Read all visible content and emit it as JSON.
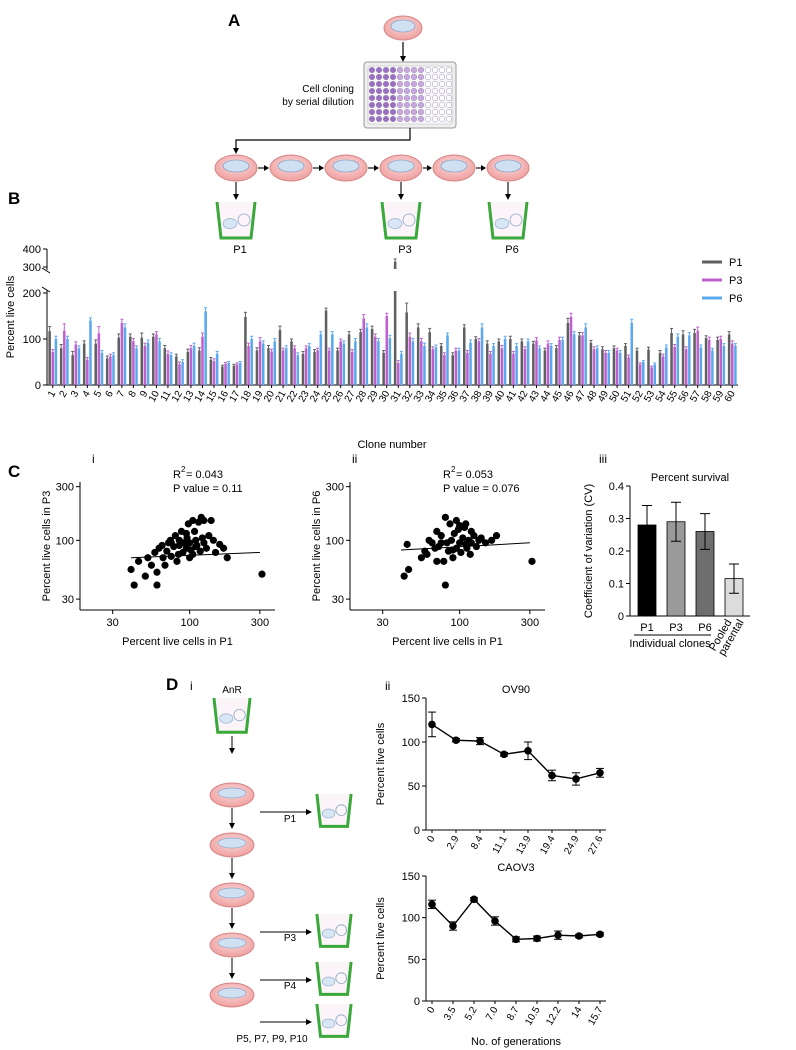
{
  "panel_labels": {
    "A": "A",
    "B": "B",
    "C": "C",
    "D": "D"
  },
  "panel_a": {
    "cloning_line1": "Cell cloning",
    "cloning_line2": "by serial dilution",
    "well_labels": [
      "P1",
      "P3",
      "P6"
    ]
  },
  "panel_d_schema": {
    "sub": "i",
    "start": "AnR",
    "arrows": [
      "P1",
      "P3",
      "P4"
    ],
    "last": "P5, P7, P9, P10"
  },
  "colors": {
    "P1": "#5f5f5f",
    "P3": "#c05fd0",
    "P6": "#5aa8ee",
    "dish": "#f2b6b6",
    "well": "#3aa83a"
  },
  "chart_data": [
    {
      "id": "B",
      "type": "bar",
      "title": "",
      "ylabel": "Percent live cells",
      "xlabel": "Clone number",
      "ylim_lower": [
        0,
        200
      ],
      "ylim_upper": [
        300,
        400
      ],
      "yticks_lower": [
        "0",
        "100",
        "200"
      ],
      "yticks_upper": [
        "300",
        "400"
      ],
      "categories": [
        "1",
        "2",
        "3",
        "4",
        "5",
        "6",
        "7",
        "8",
        "9",
        "10",
        "11",
        "12",
        "13",
        "14",
        "15",
        "16",
        "17",
        "18",
        "19",
        "20",
        "21",
        "22",
        "23",
        "24",
        "25",
        "26",
        "27",
        "28",
        "29",
        "30",
        "31",
        "32",
        "33",
        "34",
        "35",
        "36",
        "37",
        "38",
        "39",
        "40",
        "41",
        "42",
        "43",
        "44",
        "45",
        "46",
        "47",
        "48",
        "49",
        "50",
        "51",
        "52",
        "53",
        "54",
        "55",
        "56",
        "57",
        "58",
        "59",
        "60"
      ],
      "series": [
        {
          "name": "P1",
          "values": [
            117,
            80,
            65,
            90,
            90,
            58,
            103,
            105,
            103,
            105,
            80,
            62,
            72,
            75,
            55,
            40,
            42,
            148,
            75,
            80,
            120,
            95,
            68,
            72,
            162,
            75,
            110,
            115,
            122,
            70,
            330,
            158,
            125,
            115,
            85,
            65,
            125,
            100,
            90,
            95,
            100,
            95,
            90,
            75,
            80,
            135,
            108,
            92,
            78,
            80,
            85,
            75,
            77,
            70,
            113,
            110,
            113,
            102,
            98,
            110
          ]
        },
        {
          "name": "P3",
          "values": [
            72,
            118,
            88,
            55,
            112,
            62,
            135,
            95,
            85,
            110,
            68,
            45,
            80,
            105,
            52,
            46,
            45,
            85,
            95,
            73,
            75,
            80,
            80,
            75,
            75,
            95,
            72,
            145,
            105,
            150,
            48,
            105,
            95,
            78,
            65,
            75,
            70,
            95,
            68,
            80,
            68,
            78,
            97,
            90,
            98,
            148,
            108,
            78,
            70,
            75,
            60,
            45,
            38,
            62,
            83,
            78,
            118,
            98,
            100,
            90
          ]
        },
        {
          "name": "P6",
          "values": [
            100,
            100,
            80,
            140,
            70,
            65,
            125,
            80,
            92,
            95,
            65,
            50,
            85,
            160,
            68,
            48,
            48,
            100,
            90,
            95,
            80,
            65,
            85,
            110,
            110,
            90,
            95,
            125,
            95,
            102,
            68,
            95,
            85,
            82,
            108,
            75,
            92,
            125,
            85,
            100,
            85,
            95,
            80,
            85,
            98,
            110,
            125,
            80,
            70,
            70,
            135,
            50,
            45,
            82,
            105,
            108,
            82,
            75,
            85,
            85
          ]
        }
      ],
      "errors": {
        "P1": [
          10,
          8,
          8,
          6,
          8,
          5,
          8,
          6,
          10,
          6,
          6,
          5,
          6,
          6,
          5,
          3,
          3,
          10,
          6,
          6,
          8,
          5,
          5,
          5,
          5,
          5,
          6,
          6,
          6,
          5,
          15,
          20,
          8,
          8,
          5,
          5,
          6,
          5,
          6,
          5,
          6,
          5,
          5,
          5,
          6,
          10,
          6,
          5,
          5,
          5,
          5,
          5,
          5,
          5,
          10,
          8,
          8,
          5,
          6,
          6
        ],
        "P3": [
          5,
          15,
          6,
          5,
          15,
          5,
          8,
          6,
          6,
          6,
          6,
          5,
          6,
          8,
          5,
          3,
          3,
          6,
          8,
          5,
          5,
          5,
          5,
          5,
          5,
          5,
          5,
          8,
          6,
          6,
          5,
          8,
          6,
          5,
          5,
          5,
          5,
          6,
          5,
          6,
          5,
          5,
          6,
          6,
          6,
          8,
          6,
          5,
          5,
          5,
          5,
          3,
          3,
          5,
          5,
          5,
          8,
          6,
          6,
          6
        ],
        "P6": [
          6,
          6,
          5,
          6,
          5,
          5,
          8,
          5,
          6,
          6,
          5,
          5,
          6,
          8,
          5,
          3,
          3,
          6,
          6,
          6,
          5,
          5,
          5,
          6,
          6,
          6,
          6,
          8,
          6,
          6,
          5,
          6,
          6,
          5,
          5,
          5,
          6,
          8,
          5,
          6,
          5,
          5,
          5,
          5,
          6,
          6,
          8,
          5,
          5,
          5,
          8,
          3,
          3,
          5,
          6,
          6,
          5,
          5,
          5,
          5
        ]
      }
    },
    {
      "id": "Ci",
      "type": "scatter",
      "sub": "i",
      "xlabel": "Percent live cells in P1",
      "ylabel": "Percent live cells in P3",
      "annotation": {
        "r2": "= 0.043",
        "p": "P value = 0.11"
      },
      "xscale": "log",
      "yscale": "log",
      "xlim": [
        18,
        380
      ],
      "ylim": [
        24,
        330
      ],
      "xticks": [
        "30",
        "100",
        "300"
      ],
      "yticks": [
        "30",
        "100",
        "300"
      ],
      "fit": {
        "start": [
          40,
          70
        ],
        "end": [
          300,
          78
        ]
      },
      "points": [
        [
          42,
          40
        ],
        [
          40,
          55
        ],
        [
          45,
          65
        ],
        [
          50,
          48
        ],
        [
          52,
          70
        ],
        [
          55,
          60
        ],
        [
          58,
          78
        ],
        [
          60,
          52
        ],
        [
          62,
          85
        ],
        [
          65,
          90
        ],
        [
          66,
          70
        ],
        [
          68,
          60
        ],
        [
          70,
          80
        ],
        [
          72,
          95
        ],
        [
          74,
          100
        ],
        [
          75,
          72
        ],
        [
          78,
          88
        ],
        [
          80,
          110
        ],
        [
          82,
          65
        ],
        [
          84,
          75
        ],
        [
          85,
          100
        ],
        [
          88,
          120
        ],
        [
          90,
          78
        ],
        [
          92,
          95
        ],
        [
          95,
          85
        ],
        [
          96,
          105
        ],
        [
          98,
          140
        ],
        [
          100,
          95
        ],
        [
          102,
          82
        ],
        [
          105,
          75
        ],
        [
          108,
          120
        ],
        [
          110,
          100
        ],
        [
          112,
          90
        ],
        [
          115,
          145
        ],
        [
          118,
          80
        ],
        [
          120,
          160
        ],
        [
          122,
          105
        ],
        [
          125,
          95
        ],
        [
          130,
          85
        ],
        [
          135,
          110
        ],
        [
          140,
          150
        ],
        [
          145,
          100
        ],
        [
          150,
          78
        ],
        [
          160,
          92
        ],
        [
          170,
          85
        ],
        [
          180,
          70
        ],
        [
          310,
          50
        ],
        [
          100,
          70
        ],
        [
          85,
          90
        ],
        [
          95,
          115
        ],
        [
          110,
          88
        ],
        [
          75,
          95
        ],
        [
          105,
          150
        ],
        [
          125,
          150
        ],
        [
          60,
          40
        ]
      ]
    },
    {
      "id": "Cii",
      "type": "scatter",
      "sub": "ii",
      "xlabel": "Percent live cells in  P1",
      "ylabel": "Percent live cells in P6",
      "annotation": {
        "r2": "= 0.053",
        "p": "P value = 0.076"
      },
      "xscale": "log",
      "yscale": "log",
      "xlim": [
        18,
        380
      ],
      "ylim": [
        24,
        330
      ],
      "xticks": [
        "30",
        "100",
        "300"
      ],
      "yticks": [
        "30",
        "100",
        "300"
      ],
      "fit": {
        "start": [
          40,
          82
        ],
        "end": [
          300,
          95
        ]
      },
      "points": [
        [
          42,
          48
        ],
        [
          45,
          55
        ],
        [
          44,
          92
        ],
        [
          55,
          70
        ],
        [
          58,
          80
        ],
        [
          60,
          75
        ],
        [
          62,
          100
        ],
        [
          65,
          95
        ],
        [
          68,
          85
        ],
        [
          70,
          120
        ],
        [
          72,
          88
        ],
        [
          75,
          110
        ],
        [
          78,
          65
        ],
        [
          80,
          160
        ],
        [
          82,
          95
        ],
        [
          84,
          80
        ],
        [
          86,
          140
        ],
        [
          88,
          100
        ],
        [
          90,
          70
        ],
        [
          92,
          115
        ],
        [
          95,
          85
        ],
        [
          98,
          125
        ],
        [
          100,
          95
        ],
        [
          102,
          78
        ],
        [
          105,
          105
        ],
        [
          108,
          130
        ],
        [
          110,
          92
        ],
        [
          112,
          85
        ],
        [
          115,
          100
        ],
        [
          118,
          75
        ],
        [
          120,
          95
        ],
        [
          125,
          110
        ],
        [
          130,
          88
        ],
        [
          135,
          100
        ],
        [
          140,
          105
        ],
        [
          150,
          95
        ],
        [
          165,
          100
        ],
        [
          178,
          110
        ],
        [
          310,
          65
        ],
        [
          80,
          40
        ],
        [
          95,
          150
        ],
        [
          100,
          135
        ],
        [
          110,
          140
        ],
        [
          75,
          95
        ],
        [
          90,
          82
        ],
        [
          120,
          120
        ],
        [
          70,
          65
        ]
      ]
    },
    {
      "id": "Ciii",
      "type": "bar",
      "sub": "iii",
      "title": "Percent survival",
      "ylabel": "Coefficient of variation (CV)",
      "categories": [
        "P1",
        "P3",
        "P6",
        "Pooled parental"
      ],
      "category_lines": [
        [
          "P1"
        ],
        [
          "P3"
        ],
        [
          "P6"
        ],
        [
          "Pooled",
          "parental"
        ]
      ],
      "group_label": "Individual clones",
      "values": [
        0.28,
        0.29,
        0.26,
        0.115
      ],
      "errors": [
        0.06,
        0.06,
        0.055,
        0.045
      ],
      "bar_colors": [
        "#000000",
        "#9a9a9a",
        "#6e6e6e",
        "#dcdcdc"
      ],
      "ylim": [
        0,
        0.4
      ],
      "yticks": [
        "0",
        "0.1",
        "0.2",
        "0.3",
        "0.4"
      ]
    },
    {
      "id": "Dii_top",
      "type": "line",
      "sub": "ii",
      "title": "OV90",
      "ylabel": "Percent live cells",
      "x": [
        "0",
        "2.9",
        "8.4",
        "11.1",
        "13.9",
        "19.4",
        "24.9",
        "27.6"
      ],
      "values": [
        120,
        102,
        101,
        86,
        90,
        62,
        58,
        65
      ],
      "errors": [
        14,
        2,
        4,
        2,
        10,
        6,
        7,
        5
      ],
      "ylim": [
        0,
        150
      ],
      "yticks": [
        "0",
        "50",
        "100",
        "150"
      ]
    },
    {
      "id": "Dii_bottom",
      "type": "line",
      "title": "CAOV3",
      "ylabel": "Percent live cells",
      "xlabel": "No. of generations",
      "x": [
        "0",
        "3.5",
        "5.2",
        "7.0",
        "8.7",
        "10.5",
        "12.2",
        "14",
        "15.7"
      ],
      "values": [
        116,
        90,
        122,
        96,
        74,
        75,
        79,
        78,
        80
      ],
      "errors": [
        5,
        5,
        2,
        5,
        3,
        3,
        5,
        2,
        2
      ],
      "ylim": [
        0,
        150
      ],
      "yticks": [
        "0",
        "50",
        "100",
        "150"
      ]
    }
  ]
}
